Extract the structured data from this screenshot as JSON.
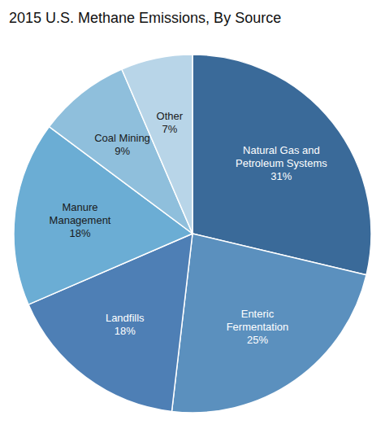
{
  "chart_data": {
    "type": "pie",
    "title": "2015 U.S. Methane Emissions, By Source",
    "categories": [
      "Natural Gas and\nPetroleum Systems\n31%",
      "Enteric\nFermentation\n25%",
      "Landfills\n18%",
      "Manure\nManagement\n18%",
      "Coal Mining\n9%",
      "Other\n7%"
    ],
    "values": [
      31,
      25,
      18,
      18,
      9,
      7
    ],
    "colors": [
      "#3A6A99",
      "#5B90BE",
      "#4E7FB5",
      "#6BADD4",
      "#8FBFDC",
      "#B8D5E8"
    ],
    "data_labels": true
  }
}
